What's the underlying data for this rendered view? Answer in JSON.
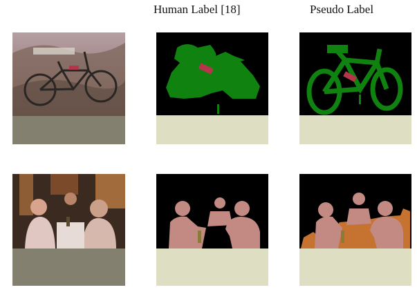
{
  "headers": {
    "col1": "",
    "col2": "Human Label [18]",
    "col3": "Pseudo Label"
  },
  "rows": [
    {
      "photo_subject": "bicycle on grassy hill",
      "human_label_class": "bicycle",
      "pseudo_label_class": "bicycle"
    },
    {
      "photo_subject": "people seated around a table",
      "human_label_class": "person",
      "pseudo_label_class": "person, dining table"
    }
  ],
  "colors": {
    "background_class": "#000000",
    "void_padding_label": "#dedfc2",
    "void_padding_photo": "#848070",
    "bicycle": "#0f820f",
    "person": "#c28a82",
    "dining_table": "#c67331",
    "text": "#111111"
  }
}
